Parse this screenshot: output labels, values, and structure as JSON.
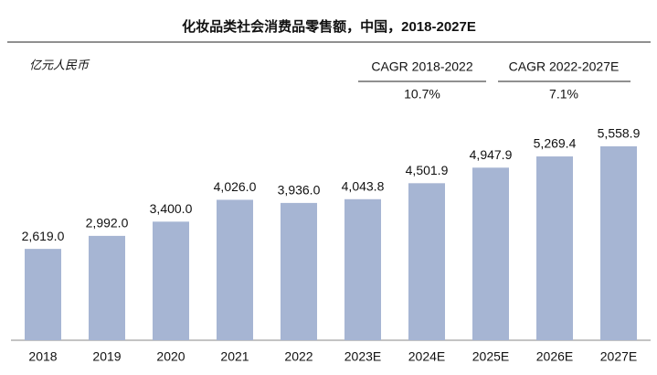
{
  "chart_data": {
    "type": "bar",
    "title": "化妆品类社会消费品零售额，中国，2018-2027E",
    "unit_label": "亿元人民币",
    "annotations": [
      {
        "label": "CAGR 2018-2022",
        "value": "10.7%"
      },
      {
        "label": "CAGR 2022-2027E",
        "value": "7.1%"
      }
    ],
    "categories": [
      "2018",
      "2019",
      "2020",
      "2021",
      "2022",
      "2023E",
      "2024E",
      "2025E",
      "2026E",
      "2027E"
    ],
    "values": [
      2619.0,
      2992.0,
      3400.0,
      4026.0,
      3936.0,
      4043.8,
      4501.9,
      4947.9,
      5269.4,
      5558.9
    ],
    "value_labels": [
      "2,619.0",
      "2,992.0",
      "3,400.0",
      "4,026.0",
      "3,936.0",
      "4,043.8",
      "4,501.9",
      "4,947.9",
      "5,269.4",
      "5,558.9"
    ],
    "color": "#a6b5d3"
  }
}
